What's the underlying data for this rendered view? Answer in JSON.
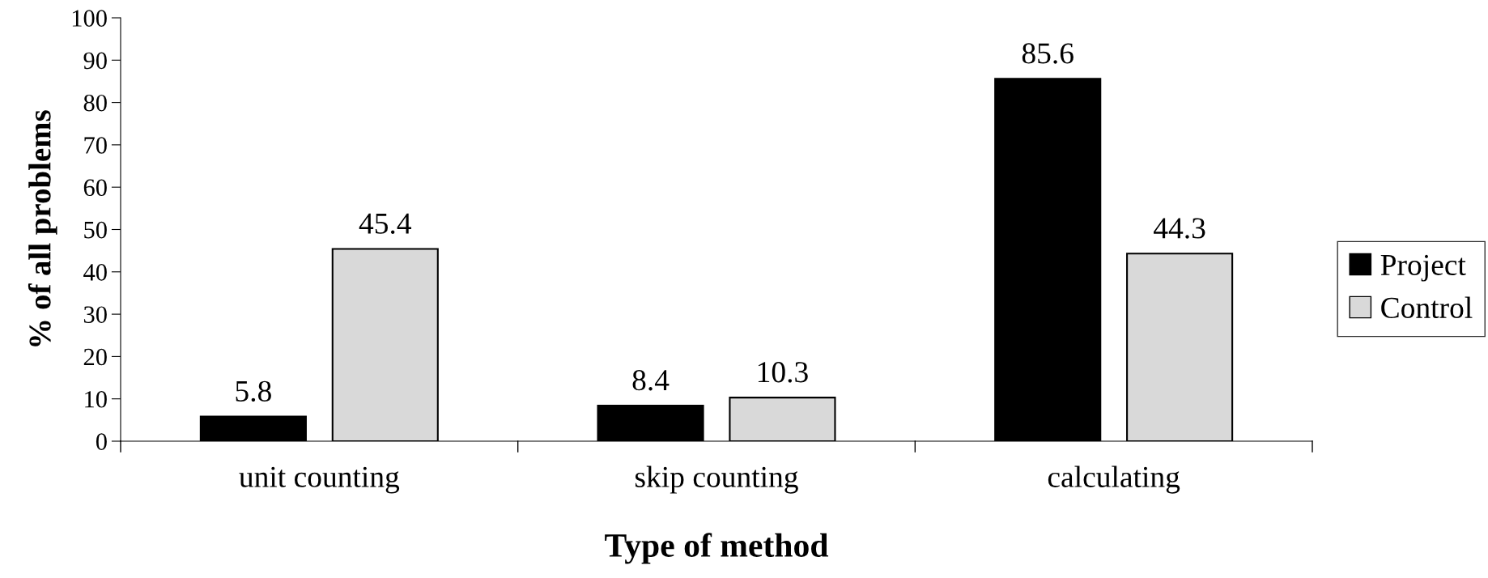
{
  "chart_data": {
    "type": "bar",
    "xlabel": "Type of method",
    "ylabel": "% of all problems",
    "categories": [
      "unit counting",
      "skip counting",
      "calculating"
    ],
    "series": [
      {
        "name": "Project",
        "color": "#000000",
        "values": [
          5.8,
          8.4,
          85.6
        ]
      },
      {
        "name": "Control",
        "color": "#d9d9d9",
        "values": [
          45.4,
          10.3,
          44.3
        ]
      }
    ],
    "ylim": [
      0,
      100
    ],
    "yticks": [
      0,
      10,
      20,
      30,
      40,
      50,
      60,
      70,
      80,
      90,
      100
    ],
    "grid": false,
    "legend": "right",
    "data_labels": true
  }
}
